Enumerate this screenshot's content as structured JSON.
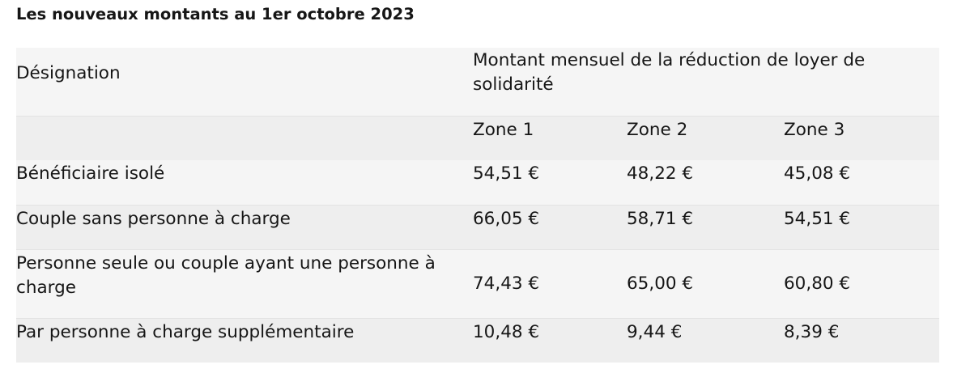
{
  "page": {
    "title": "Les nouveaux montants au 1er octobre 2023"
  },
  "table": {
    "header": {
      "designation": "Désignation",
      "montant": "Montant mensuel de la réduction de loyer de solidarité"
    },
    "zones": [
      "Zone 1",
      "Zone 2",
      "Zone 3"
    ],
    "rows": [
      {
        "label": "Bénéficiaire isolé",
        "values": [
          "54,51 €",
          "48,22 €",
          "45,08 €"
        ]
      },
      {
        "label": "Couple sans personne à charge",
        "values": [
          "66,05 €",
          "58,71 €",
          "54,51 €"
        ]
      },
      {
        "label": "Personne seule ou couple ayant une personne à charge",
        "values": [
          "74,43 €",
          "65,00 €",
          "60,80 €"
        ]
      },
      {
        "label": "Par personne à charge supplémentaire",
        "values": [
          "10,48 €",
          "9,44 €",
          "8,39 €"
        ]
      }
    ]
  },
  "colors": {
    "text": "#161616",
    "row_light": "#f5f5f5",
    "row_dark": "#eeeeee"
  }
}
